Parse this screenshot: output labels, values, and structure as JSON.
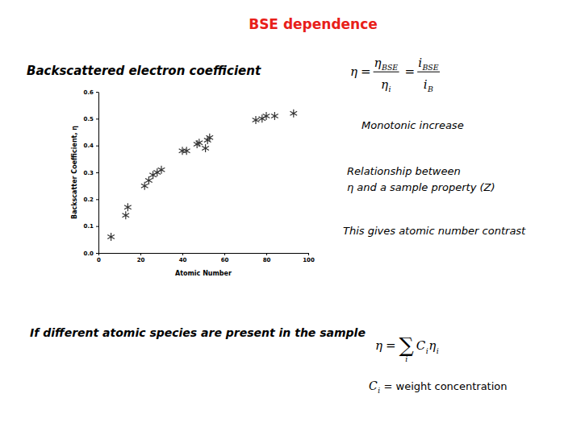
{
  "chart_data": {
    "type": "scatter",
    "title": "BSE dependence",
    "x_label": "Atomic Number",
    "y_label": "Backscatter Coefficient, η",
    "x": [
      6,
      13,
      14,
      22,
      24,
      26,
      28,
      30,
      40,
      42,
      47,
      48,
      51,
      52,
      53,
      75,
      78,
      80,
      84,
      93
    ],
    "values": [
      0.06,
      0.14,
      0.17,
      0.25,
      0.27,
      0.29,
      0.3,
      0.31,
      0.38,
      0.38,
      0.405,
      0.41,
      0.39,
      0.42,
      0.43,
      0.495,
      0.5,
      0.51,
      0.51,
      0.52
    ],
    "color": "#333333",
    "marker": "asterisk",
    "xlim": [
      0,
      100
    ],
    "xticks": [
      0,
      20,
      40,
      60,
      80,
      100
    ],
    "ylim": [
      0,
      0.6
    ],
    "yticks": [
      {
        "value": 0,
        "label": "0.0"
      },
      0.1,
      0.2,
      0.3,
      0.4,
      0.5,
      0.6
    ],
    "grid": false,
    "annotations": [
      "Backscattered electron coefficient",
      "Monotonic increase",
      "Relationship between",
      "η and a sample property (Z)",
      "This gives atomic number contrast",
      "If different atomic species are present in the sample"
    ],
    "formulas": [
      [
        {
          "base": "η"
        },
        {
          "op": "="
        },
        {
          "num": {
            "base": "η",
            "sub": "BSE"
          },
          "den": {
            "base": "η",
            "sub": "i"
          }
        },
        {
          "op": "="
        },
        {
          "num": {
            "base": "i",
            "sub": "BSE"
          },
          "den": {
            "base": "i",
            "sub": "B"
          }
        }
      ],
      [
        {
          "base": "η"
        },
        {
          "op": "="
        },
        {
          "sum": "∑",
          "under": "i"
        },
        {
          "base": "C",
          "sub": "i"
        },
        {
          "base": "η",
          "sub": "i"
        }
      ],
      [
        {
          "base": "C",
          "sub": "i"
        },
        {
          "op": "= weight concentration"
        }
      ]
    ]
  }
}
